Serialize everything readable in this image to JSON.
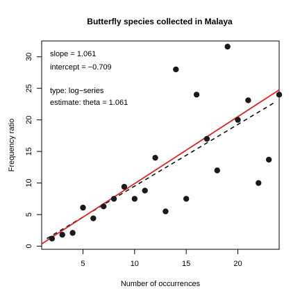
{
  "chart_data": {
    "type": "scatter",
    "title": "Butterfly species collected in Malaya",
    "xlabel": "Number of occurrences",
    "ylabel": "Frequency ratio",
    "xlim": [
      1,
      24
    ],
    "ylim": [
      -0.5,
      32.5
    ],
    "xticks": [
      5,
      10,
      15,
      20
    ],
    "yticks": [
      0,
      5,
      10,
      15,
      20,
      25,
      30
    ],
    "grid": false,
    "point_color": "#1a1a1a",
    "points": {
      "x": [
        2,
        3,
        4,
        5,
        6,
        7,
        8,
        9,
        10,
        11,
        12,
        13,
        14,
        15,
        16,
        17,
        18,
        19,
        20,
        21,
        22,
        23,
        24
      ],
      "y": [
        1.2,
        1.8,
        2.1,
        6.1,
        4.4,
        6.3,
        7.5,
        9.4,
        7.5,
        8.8,
        14.0,
        5.5,
        28.0,
        7.5,
        24.0,
        17.0,
        12.0,
        31.6,
        20.0,
        23.1,
        10.0,
        13.7,
        24.0
      ]
    },
    "fit_line": {
      "color": "#d62728",
      "slope": 1.061,
      "intercept": -0.709,
      "x_range": [
        1.0,
        24.0
      ]
    },
    "estimate_line": {
      "color": "#000000",
      "style": "dashed",
      "y_at_x_range": [
        1.2,
        22.7
      ],
      "x_range": [
        1.5,
        23.5
      ]
    },
    "annotations": {
      "slope": "slope = 1.061",
      "intercept": "intercept = −0.709",
      "type": "type: log−series",
      "estimate": "estimate: theta = 1.061"
    }
  }
}
